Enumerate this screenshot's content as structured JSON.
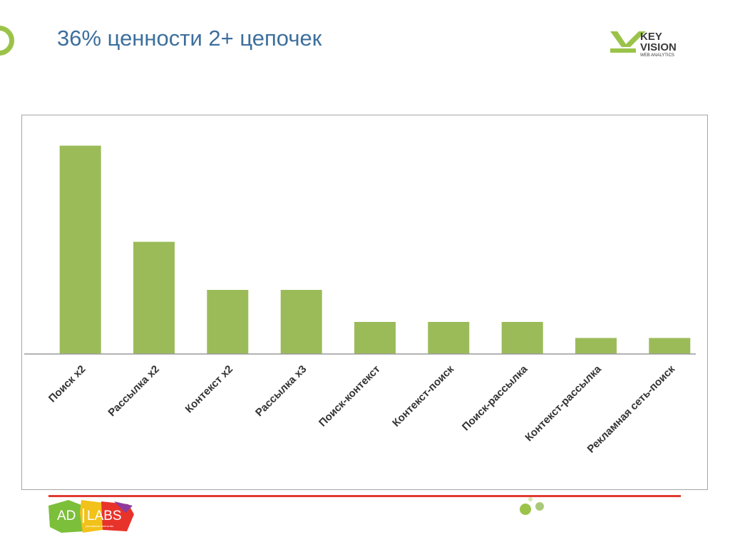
{
  "slide": {
    "title": "36% ценности 2+ цепочек"
  },
  "logos": {
    "brand_line1": "KEY",
    "brand_line2": "VISION",
    "brand_line3": "WEB ANALYTICS",
    "footer_part1": "AD",
    "footer_part2": "LABS",
    "footer_tagline": "рекламное агентство"
  },
  "colors": {
    "bar": "#9bbb59",
    "title": "#3d6f9c",
    "accent_green": "#9bc34a",
    "footer_line": "#e03a32"
  },
  "chart_data": {
    "type": "bar",
    "categories": [
      "Поиск x2",
      "Рассылка x2",
      "Контекст x2",
      "Рассылка x3",
      "Поиск-контекст",
      "Контекст-поиск",
      "Поиск-рассылка",
      "Контекст-рассылка",
      "Рекламная сеть-поиск"
    ],
    "values": [
      13,
      7,
      4,
      4,
      2,
      2,
      2,
      1,
      1
    ],
    "title": "",
    "xlabel": "",
    "ylabel": "",
    "ylim": [
      0,
      14
    ],
    "grid": false,
    "legend": "none"
  }
}
